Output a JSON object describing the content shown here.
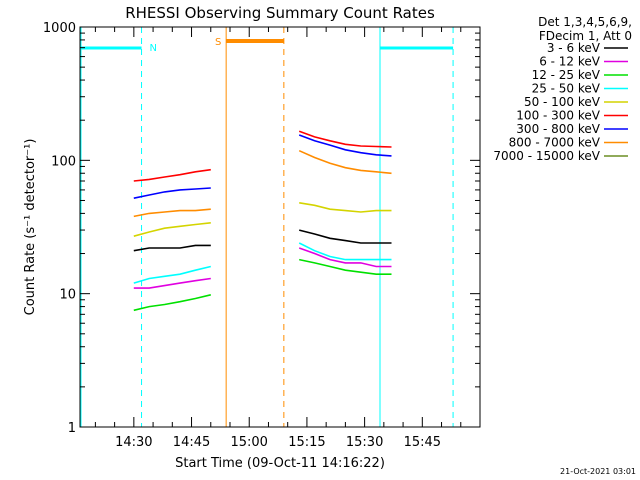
{
  "chart_data": {
    "type": "line",
    "title": "RHESSI Observing Summary Count Rates",
    "xlabel": "Start Time (09-Oct-11 14:16:22)",
    "ylabel": "Count Rate (s⁻¹ detector⁻¹)",
    "x_unit": "minutes",
    "xlim": [
      "14:16",
      "16:00"
    ],
    "ylim": [
      1,
      1000
    ],
    "y_scale": "log",
    "x_ticks": [
      "14:30",
      "14:45",
      "15:00",
      "15:15",
      "15:30",
      "15:45"
    ],
    "y_ticks": [
      "1",
      "10",
      "100",
      "1000"
    ],
    "legend_title_1": "Det 1,3,4,5,6,9,",
    "legend_title_2": "FDecim 1, Att 0",
    "legend_position": "right",
    "timestamp": "21-Oct-2021 03:01",
    "series": [
      {
        "name": "3 - 6 keV",
        "color": "#000000",
        "segments": [
          {
            "x": [
              "14:30",
              "14:34",
              "14:38",
              "14:42",
              "14:46",
              "14:50"
            ],
            "y": [
              21,
              22,
              22,
              22,
              23,
              23
            ]
          },
          {
            "x": [
              "15:13",
              "15:17",
              "15:21",
              "15:25",
              "15:29",
              "15:33",
              "15:37"
            ],
            "y": [
              30,
              28,
              26,
              25,
              24,
              24,
              24
            ]
          }
        ]
      },
      {
        "name": "6 - 12 keV",
        "color": "#e000e0",
        "segments": [
          {
            "x": [
              "14:30",
              "14:34",
              "14:38",
              "14:42",
              "14:46",
              "14:50"
            ],
            "y": [
              11,
              11,
              11.5,
              12,
              12.5,
              13
            ]
          },
          {
            "x": [
              "15:13",
              "15:17",
              "15:21",
              "15:25",
              "15:29",
              "15:33",
              "15:37"
            ],
            "y": [
              22,
              20,
              18,
              17,
              17,
              16,
              16
            ]
          }
        ]
      },
      {
        "name": "12 - 25 keV",
        "color": "#00e000",
        "segments": [
          {
            "x": [
              "14:30",
              "14:34",
              "14:38",
              "14:42",
              "14:46",
              "14:50"
            ],
            "y": [
              7.5,
              8,
              8.3,
              8.7,
              9.2,
              9.8
            ]
          },
          {
            "x": [
              "15:13",
              "15:17",
              "15:21",
              "15:25",
              "15:29",
              "15:33",
              "15:37"
            ],
            "y": [
              18,
              17,
              16,
              15,
              14.5,
              14,
              14
            ]
          }
        ]
      },
      {
        "name": "25 - 50 keV",
        "color": "#00ffff",
        "segments": [
          {
            "x": [
              "14:30",
              "14:34",
              "14:38",
              "14:42",
              "14:46",
              "14:50"
            ],
            "y": [
              12,
              13,
              13.5,
              14,
              15,
              16
            ]
          },
          {
            "x": [
              "15:13",
              "15:17",
              "15:21",
              "15:25",
              "15:29",
              "15:33",
              "15:37"
            ],
            "y": [
              24,
              21,
              19,
              18,
              18,
              18,
              18
            ]
          }
        ]
      },
      {
        "name": "50 - 100 keV",
        "color": "#d4d400",
        "segments": [
          {
            "x": [
              "14:30",
              "14:34",
              "14:38",
              "14:42",
              "14:46",
              "14:50"
            ],
            "y": [
              27,
              29,
              31,
              32,
              33,
              34
            ]
          },
          {
            "x": [
              "15:13",
              "15:17",
              "15:21",
              "15:25",
              "15:29",
              "15:33",
              "15:37"
            ],
            "y": [
              48,
              46,
              43,
              42,
              41,
              42,
              42
            ]
          }
        ]
      },
      {
        "name": "100 - 300 keV",
        "color": "#ff0000",
        "segments": [
          {
            "x": [
              "14:30",
              "14:34",
              "14:38",
              "14:42",
              "14:46",
              "14:50"
            ],
            "y": [
              70,
              72,
              75,
              78,
              82,
              85
            ]
          },
          {
            "x": [
              "15:13",
              "15:17",
              "15:21",
              "15:25",
              "15:29",
              "15:33",
              "15:37"
            ],
            "y": [
              165,
              150,
              140,
              132,
              128,
              127,
              126
            ]
          }
        ]
      },
      {
        "name": "300 - 800 keV",
        "color": "#0000ff",
        "segments": [
          {
            "x": [
              "14:30",
              "14:34",
              "14:38",
              "14:42",
              "14:46",
              "14:50"
            ],
            "y": [
              52,
              55,
              58,
              60,
              61,
              62
            ]
          },
          {
            "x": [
              "15:13",
              "15:17",
              "15:21",
              "15:25",
              "15:29",
              "15:33",
              "15:37"
            ],
            "y": [
              155,
              140,
              130,
              120,
              114,
              110,
              108
            ]
          }
        ]
      },
      {
        "name": "800 - 7000 keV",
        "color": "#ff8c00",
        "segments": [
          {
            "x": [
              "14:30",
              "14:34",
              "14:38",
              "14:42",
              "14:46",
              "14:50"
            ],
            "y": [
              38,
              40,
              41,
              42,
              42,
              43
            ]
          },
          {
            "x": [
              "15:13",
              "15:17",
              "15:21",
              "15:25",
              "15:29",
              "15:33",
              "15:37"
            ],
            "y": [
              118,
              105,
              95,
              88,
              84,
              82,
              80
            ]
          }
        ]
      },
      {
        "name": "7000 - 15000 keV",
        "color": "#6b8e23",
        "segments": []
      }
    ],
    "attenuator_flags": [
      {
        "label": "N",
        "color": "#00ffff",
        "spans": [
          [
            "14:16",
            "14:32"
          ],
          [
            "15:34",
            "15:53"
          ]
        ]
      },
      {
        "label": "S",
        "color": "#ff8c00",
        "spans": [
          [
            "14:54",
            "15:09"
          ]
        ]
      }
    ]
  }
}
